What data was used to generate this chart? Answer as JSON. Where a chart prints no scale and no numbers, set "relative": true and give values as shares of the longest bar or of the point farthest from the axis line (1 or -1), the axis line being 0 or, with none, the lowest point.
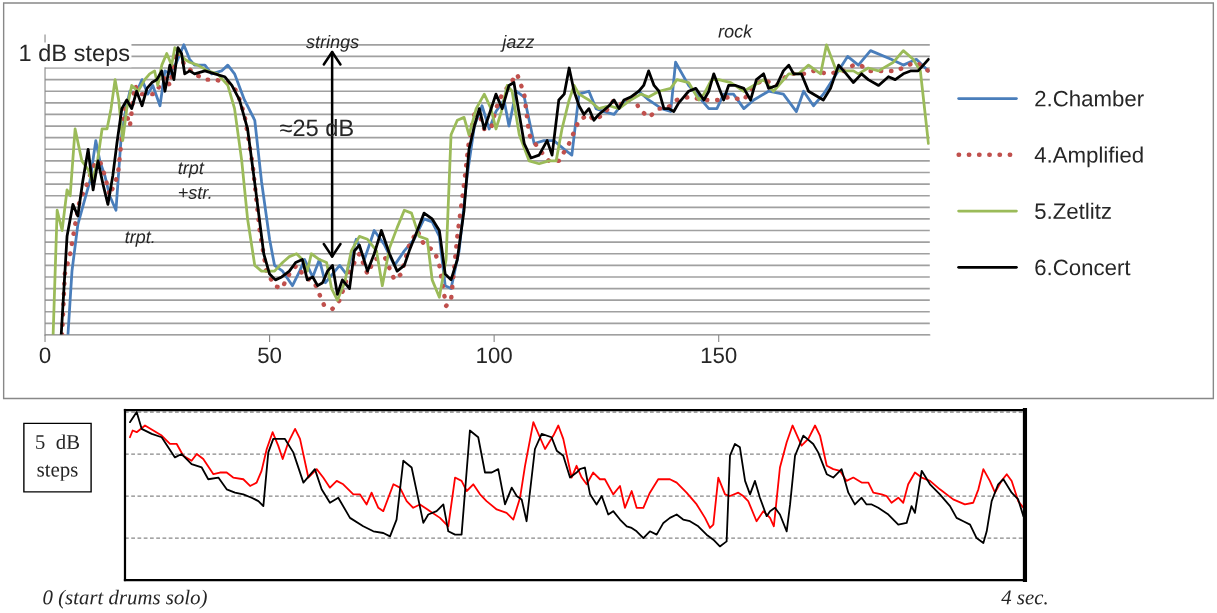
{
  "chart_data": [
    {
      "type": "line",
      "relative": true,
      "xlim": [
        0,
        197
      ],
      "xticks": [
        0,
        50,
        100,
        150
      ],
      "tick_labels": "x",
      "grid": "y",
      "legend": "right",
      "annotations": [
        "1 dB steps",
        "strings",
        "jazz",
        "rock",
        "trpt.",
        "trpt\n+str.",
        "≈25 dB"
      ],
      "series": [
        {
          "name": "2.Chamber",
          "color": "#4a7ebb",
          "line_style": "solid",
          "x": [
            5.1,
            6.0,
            7.3,
            8.9,
            10.0,
            11.3,
            12.2,
            13.3,
            14.4,
            15.8,
            16.9,
            18.0,
            18.9,
            20.2,
            21.6,
            22.9,
            24.0,
            25.6,
            26.7,
            27.8,
            29.3,
            30.9,
            32.2,
            33.3,
            35.6,
            37.1,
            39.3,
            40.7,
            42.2,
            44.4,
            46.7,
            48.2,
            50.0,
            51.1,
            52.9,
            55.1,
            56.7,
            57.8,
            59.6,
            61.1,
            62.4,
            64.0,
            65.6,
            67.1,
            69.3,
            71.1,
            73.3,
            75.6,
            77.8,
            80.0,
            82.2,
            84.4,
            86.2,
            87.8,
            89.1,
            90.4,
            92.2,
            94.0,
            95.6,
            97.3,
            98.9,
            100.4,
            102.2,
            103.3,
            104.9,
            106.7,
            108.9,
            111.1,
            113.3,
            115.6,
            117.3,
            118.9,
            121.1,
            122.7,
            124.4,
            126.7,
            128.2,
            130.0,
            132.2,
            134.4,
            137.3,
            139.3,
            140.4,
            143.3,
            145.6,
            147.8,
            149.6,
            151.1,
            153.3,
            155.6,
            157.8,
            161.1,
            164.4,
            167.3,
            168.9,
            171.1,
            173.3,
            178.7,
            181.1,
            183.8,
            188.4,
            191.1,
            194.0,
            196.7
          ],
          "values": [
            0.0,
            0.22,
            0.38,
            0.47,
            0.53,
            0.67,
            0.6,
            0.55,
            0.48,
            0.43,
            0.67,
            0.78,
            0.84,
            0.83,
            0.88,
            0.83,
            0.86,
            0.79,
            0.91,
            0.9,
            0.94,
            1.0,
            0.95,
            0.93,
            0.93,
            0.9,
            0.91,
            0.93,
            0.9,
            0.81,
            0.74,
            0.53,
            0.33,
            0.24,
            0.22,
            0.17,
            0.22,
            0.26,
            0.2,
            0.26,
            0.18,
            0.21,
            0.24,
            0.21,
            0.33,
            0.26,
            0.36,
            0.31,
            0.24,
            0.29,
            0.33,
            0.4,
            0.39,
            0.34,
            0.17,
            0.16,
            0.29,
            0.55,
            0.72,
            0.79,
            0.71,
            0.77,
            0.81,
            0.72,
            0.84,
            0.82,
            0.66,
            0.67,
            0.67,
            0.64,
            0.62,
            0.83,
            0.84,
            0.78,
            0.77,
            0.76,
            0.79,
            0.81,
            0.84,
            0.81,
            0.78,
            0.77,
            0.94,
            0.86,
            0.82,
            0.78,
            0.78,
            0.83,
            0.83,
            0.78,
            0.81,
            0.84,
            0.83,
            0.77,
            0.84,
            0.79,
            0.83,
            0.96,
            0.93,
            0.98,
            0.95,
            0.93,
            0.95,
            0.91
          ]
        },
        {
          "name": "4.Amplified",
          "color": "#c0504d",
          "line_style": "dotted",
          "x": [
            3.8,
            4.4,
            5.6,
            6.7,
            7.8,
            8.9,
            10.0,
            11.1,
            12.2,
            13.3,
            14.4,
            16.2,
            17.8,
            18.9,
            20.0,
            21.1,
            22.9,
            24.4,
            25.6,
            26.7,
            27.8,
            29.3,
            31.1,
            33.3,
            35.6,
            37.8,
            40.7,
            42.7,
            44.4,
            46.2,
            47.8,
            49.3,
            51.1,
            52.7,
            54.4,
            56.0,
            57.8,
            60.0,
            62.2,
            64.0,
            65.6,
            67.8,
            70.0,
            71.8,
            73.3,
            75.6,
            77.8,
            79.3,
            81.1,
            82.9,
            84.4,
            86.7,
            87.8,
            89.3,
            90.4,
            91.8,
            93.3,
            94.4,
            95.6,
            96.7,
            97.8,
            99.3,
            100.4,
            101.8,
            103.3,
            105.1,
            106.7,
            107.8,
            110.0,
            112.2,
            114.4,
            116.7,
            118.9,
            121.1,
            122.2,
            124.4,
            126.7,
            128.9,
            131.1,
            132.2,
            134.4,
            136.7,
            138.4,
            140.7,
            143.3,
            146.7,
            150.0,
            152.2,
            155.6,
            157.8,
            160.0,
            162.9,
            165.6,
            168.9,
            171.1,
            174.4,
            177.8,
            180.0,
            181.6,
            183.3,
            186.7,
            189.6,
            192.2,
            194.0,
            196.7
          ],
          "values": [
            0.0,
            0.21,
            0.28,
            0.38,
            0.47,
            0.5,
            0.55,
            0.59,
            0.6,
            0.55,
            0.48,
            0.55,
            0.78,
            0.72,
            0.86,
            0.83,
            0.83,
            0.83,
            0.86,
            0.89,
            0.86,
            0.98,
            0.93,
            0.9,
            0.88,
            0.88,
            0.87,
            0.84,
            0.76,
            0.59,
            0.36,
            0.22,
            0.17,
            0.16,
            0.21,
            0.24,
            0.2,
            0.18,
            0.1,
            0.09,
            0.12,
            0.22,
            0.28,
            0.21,
            0.26,
            0.27,
            0.19,
            0.21,
            0.31,
            0.36,
            0.31,
            0.29,
            0.24,
            0.1,
            0.12,
            0.34,
            0.52,
            0.67,
            0.76,
            0.76,
            0.71,
            0.71,
            0.78,
            0.83,
            0.86,
            0.9,
            0.83,
            0.69,
            0.64,
            0.6,
            0.6,
            0.66,
            0.74,
            0.76,
            0.74,
            0.76,
            0.81,
            0.79,
            0.83,
            0.78,
            0.75,
            0.78,
            0.78,
            0.81,
            0.82,
            0.81,
            0.81,
            0.82,
            0.81,
            0.86,
            0.88,
            0.86,
            0.9,
            0.9,
            0.91,
            0.9,
            0.91,
            0.93,
            0.93,
            0.91,
            0.91,
            0.91,
            0.93,
            0.94,
            0.91
          ]
        },
        {
          "name": "5.Zetlitz",
          "color": "#9bbb59",
          "line_style": "solid",
          "x": [
            1.8,
            2.7,
            3.8,
            4.9,
            5.6,
            6.7,
            8.2,
            9.6,
            10.4,
            11.6,
            12.7,
            13.8,
            14.7,
            15.6,
            16.4,
            17.3,
            18.2,
            19.3,
            20.7,
            22.2,
            23.3,
            24.4,
            25.1,
            26.0,
            27.1,
            28.2,
            28.9,
            30.0,
            31.1,
            32.2,
            34.0,
            36.2,
            38.4,
            40.7,
            42.2,
            43.8,
            45.1,
            46.7,
            48.2,
            49.6,
            51.1,
            52.9,
            54.4,
            56.0,
            57.3,
            58.4,
            59.3,
            61.1,
            62.7,
            63.8,
            65.1,
            66.7,
            68.2,
            70.0,
            71.8,
            73.8,
            75.1,
            76.7,
            78.4,
            80.0,
            81.6,
            83.3,
            85.1,
            86.2,
            87.8,
            89.3,
            90.4,
            91.8,
            93.3,
            94.4,
            96.0,
            97.8,
            99.3,
            100.4,
            101.6,
            102.9,
            104.0,
            105.6,
            107.8,
            110.0,
            112.2,
            113.8,
            115.1,
            116.7,
            117.8,
            118.9,
            121.1,
            123.3,
            125.6,
            127.8,
            130.4,
            132.7,
            134.4,
            136.7,
            139.3,
            140.7,
            143.3,
            145.6,
            146.7,
            148.4,
            150.0,
            152.7,
            155.6,
            157.8,
            160.0,
            162.2,
            165.6,
            167.8,
            170.0,
            172.7,
            174.0,
            176.2,
            180.0,
            181.1,
            183.3,
            185.6,
            188.9,
            191.1,
            193.3,
            194.9,
            196.7
          ],
          "values": [
            0.0,
            0.43,
            0.36,
            0.5,
            0.48,
            0.71,
            0.6,
            0.57,
            0.53,
            0.59,
            0.71,
            0.71,
            0.78,
            0.88,
            0.81,
            0.67,
            0.78,
            0.86,
            0.84,
            0.88,
            0.9,
            0.91,
            0.86,
            0.93,
            0.97,
            0.93,
            0.99,
            0.97,
            0.95,
            0.94,
            0.93,
            0.91,
            0.9,
            0.86,
            0.78,
            0.6,
            0.4,
            0.24,
            0.22,
            0.22,
            0.22,
            0.25,
            0.27,
            0.28,
            0.26,
            0.22,
            0.28,
            0.26,
            0.25,
            0.16,
            0.12,
            0.18,
            0.29,
            0.34,
            0.33,
            0.29,
            0.17,
            0.3,
            0.37,
            0.43,
            0.42,
            0.34,
            0.33,
            0.19,
            0.13,
            0.26,
            0.69,
            0.74,
            0.75,
            0.69,
            0.78,
            0.83,
            0.78,
            0.71,
            0.77,
            0.86,
            0.84,
            0.69,
            0.6,
            0.59,
            0.6,
            0.6,
            0.71,
            0.81,
            0.86,
            0.83,
            0.81,
            0.78,
            0.79,
            0.78,
            0.81,
            0.83,
            0.82,
            0.84,
            0.85,
            0.88,
            0.87,
            0.81,
            0.83,
            0.88,
            0.88,
            0.87,
            0.84,
            0.86,
            0.88,
            0.84,
            0.9,
            0.9,
            0.93,
            0.9,
            1.0,
            0.91,
            0.91,
            0.9,
            0.92,
            0.91,
            0.94,
            0.98,
            0.95,
            0.91,
            0.66
          ]
        },
        {
          "name": "6.Concert",
          "color": "#000000",
          "line_style": "solid",
          "x": [
            3.6,
            4.9,
            6.2,
            7.3,
            8.4,
            9.6,
            10.7,
            11.8,
            12.9,
            14.0,
            15.1,
            16.0,
            17.1,
            18.2,
            19.3,
            20.4,
            21.6,
            22.7,
            23.8,
            24.9,
            26.0,
            26.7,
            27.8,
            28.7,
            29.6,
            30.4,
            31.1,
            32.2,
            33.3,
            35.6,
            37.8,
            40.0,
            41.6,
            43.3,
            45.1,
            46.9,
            48.7,
            50.0,
            51.3,
            52.7,
            54.4,
            55.8,
            57.3,
            58.4,
            59.6,
            60.7,
            61.8,
            62.9,
            64.0,
            65.1,
            66.2,
            67.8,
            68.9,
            70.0,
            71.8,
            73.3,
            74.9,
            76.7,
            78.4,
            80.0,
            81.1,
            82.9,
            84.4,
            86.2,
            87.8,
            89.1,
            90.4,
            91.8,
            93.3,
            94.4,
            95.6,
            96.7,
            97.8,
            98.9,
            100.4,
            101.8,
            103.3,
            104.4,
            105.6,
            106.7,
            108.2,
            110.0,
            111.8,
            112.9,
            114.4,
            115.6,
            116.7,
            117.8,
            118.9,
            120.0,
            121.1,
            122.2,
            123.3,
            125.6,
            126.7,
            127.8,
            128.9,
            130.4,
            132.2,
            133.3,
            134.4,
            135.6,
            136.7,
            137.8,
            138.9,
            140.0,
            141.1,
            142.2,
            143.3,
            144.9,
            146.7,
            147.8,
            148.9,
            151.1,
            152.2,
            153.8,
            155.6,
            157.1,
            158.4,
            160.0,
            161.1,
            162.9,
            164.4,
            165.6,
            166.7,
            168.4,
            170.0,
            173.3,
            174.9,
            176.7,
            178.4,
            180.0,
            181.8,
            183.3,
            185.6,
            187.8,
            189.3,
            191.1,
            192.7,
            194.4,
            196.7
          ],
          "values": [
            0.0,
            0.34,
            0.45,
            0.41,
            0.53,
            0.64,
            0.5,
            0.6,
            0.52,
            0.45,
            0.55,
            0.66,
            0.78,
            0.81,
            0.78,
            0.84,
            0.79,
            0.85,
            0.87,
            0.88,
            0.91,
            0.84,
            0.93,
            0.88,
            0.99,
            0.97,
            0.9,
            0.91,
            0.9,
            0.91,
            0.9,
            0.89,
            0.86,
            0.81,
            0.71,
            0.5,
            0.28,
            0.21,
            0.19,
            0.2,
            0.22,
            0.25,
            0.26,
            0.19,
            0.2,
            0.17,
            0.18,
            0.22,
            0.24,
            0.14,
            0.19,
            0.16,
            0.29,
            0.31,
            0.22,
            0.28,
            0.36,
            0.28,
            0.22,
            0.24,
            0.29,
            0.36,
            0.42,
            0.4,
            0.36,
            0.21,
            0.19,
            0.26,
            0.43,
            0.64,
            0.72,
            0.78,
            0.71,
            0.76,
            0.83,
            0.78,
            0.86,
            0.87,
            0.76,
            0.66,
            0.61,
            0.62,
            0.67,
            0.62,
            0.81,
            0.83,
            0.92,
            0.84,
            0.79,
            0.76,
            0.78,
            0.74,
            0.76,
            0.79,
            0.81,
            0.78,
            0.81,
            0.82,
            0.84,
            0.86,
            0.91,
            0.86,
            0.84,
            0.78,
            0.78,
            0.77,
            0.8,
            0.82,
            0.84,
            0.85,
            0.81,
            0.84,
            0.9,
            0.81,
            0.86,
            0.86,
            0.85,
            0.81,
            0.88,
            0.9,
            0.85,
            0.86,
            0.91,
            0.93,
            0.9,
            0.9,
            0.84,
            0.81,
            0.85,
            0.93,
            0.9,
            0.87,
            0.9,
            0.88,
            0.86,
            0.89,
            0.88,
            0.9,
            0.91,
            0.91,
            0.95
          ]
        }
      ]
    },
    {
      "type": "line",
      "relative": true,
      "xlim": [
        0,
        4
      ],
      "xticks": [
        {
          "value": 0,
          "label": "0 (start drums solo)"
        },
        {
          "value": 4,
          "label": "4 sec."
        }
      ],
      "tick_labels": "x",
      "grid": "y",
      "annotations": [
        "5  dB\nsteps"
      ],
      "series": [
        {
          "color": "#ff0000",
          "x": [
            0.022,
            0.034,
            0.052,
            0.089,
            0.126,
            0.163,
            0.2,
            0.23,
            0.259,
            0.296,
            0.319,
            0.348,
            0.393,
            0.422,
            0.452,
            0.481,
            0.526,
            0.556,
            0.585,
            0.607,
            0.63,
            0.656,
            0.681,
            0.701,
            0.726,
            0.756,
            0.778,
            0.815,
            0.852,
            0.881,
            0.911,
            0.941,
            0.97,
            1.015,
            1.044,
            1.074,
            1.096,
            1.126,
            1.148,
            1.193,
            1.222,
            1.252,
            1.281,
            1.311,
            1.356,
            1.4,
            1.437,
            1.467,
            1.496,
            1.519,
            1.548,
            1.578,
            1.607,
            1.652,
            1.696,
            1.726,
            1.756,
            1.778,
            1.815,
            1.844,
            1.867,
            1.904,
            1.926,
            1.948,
            1.985,
            2.007,
            2.03,
            2.052,
            2.081,
            2.111,
            2.133,
            2.17,
            2.2,
            2.222,
            2.252,
            2.274,
            2.304,
            2.333,
            2.37,
            2.422,
            2.452,
            2.496,
            2.541,
            2.578,
            2.6,
            2.615,
            2.637,
            2.667,
            2.689,
            2.726,
            2.748,
            2.77,
            2.807,
            2.837,
            2.867,
            2.884,
            2.911,
            2.941,
            2.967,
            3.007,
            3.037,
            3.067,
            3.089,
            3.119,
            3.148,
            3.178,
            3.207,
            3.237,
            3.274,
            3.304,
            3.326,
            3.363,
            3.385,
            3.407,
            3.437,
            3.459,
            3.481,
            3.511,
            3.541,
            3.578,
            3.622,
            3.681,
            3.733,
            3.77,
            3.793,
            3.815,
            3.844,
            3.867,
            3.896,
            3.919,
            3.941,
            3.97,
            3.993
          ],
          "values": [
            0.85,
            0.89,
            0.88,
            0.92,
            0.89,
            0.86,
            0.81,
            0.81,
            0.74,
            0.71,
            0.75,
            0.72,
            0.63,
            0.64,
            0.64,
            0.61,
            0.6,
            0.56,
            0.58,
            0.65,
            0.78,
            0.88,
            0.8,
            0.72,
            0.82,
            0.9,
            0.84,
            0.61,
            0.66,
            0.61,
            0.55,
            0.59,
            0.57,
            0.51,
            0.51,
            0.45,
            0.52,
            0.43,
            0.41,
            0.57,
            0.55,
            0.47,
            0.43,
            0.45,
            0.41,
            0.37,
            0.32,
            0.61,
            0.59,
            0.53,
            0.57,
            0.51,
            0.47,
            0.42,
            0.4,
            0.36,
            0.49,
            0.68,
            0.94,
            0.85,
            0.78,
            0.86,
            0.92,
            0.84,
            0.61,
            0.68,
            0.61,
            0.57,
            0.64,
            0.6,
            0.6,
            0.51,
            0.56,
            0.43,
            0.53,
            0.43,
            0.43,
            0.52,
            0.6,
            0.6,
            0.58,
            0.52,
            0.45,
            0.37,
            0.31,
            0.33,
            0.61,
            0.51,
            0.5,
            0.52,
            0.5,
            0.47,
            0.35,
            0.41,
            0.37,
            0.32,
            0.67,
            0.82,
            0.92,
            0.8,
            0.84,
            0.92,
            0.86,
            0.68,
            0.66,
            0.65,
            0.59,
            0.61,
            0.58,
            0.58,
            0.52,
            0.51,
            0.5,
            0.46,
            0.49,
            0.46,
            0.57,
            0.64,
            0.61,
            0.59,
            0.54,
            0.48,
            0.45,
            0.46,
            0.54,
            0.66,
            0.59,
            0.52,
            0.59,
            0.63,
            0.59,
            0.47,
            0.43
          ]
        },
        {
          "color": "#000000",
          "x": [
            0.022,
            0.052,
            0.074,
            0.119,
            0.163,
            0.222,
            0.252,
            0.296,
            0.341,
            0.37,
            0.415,
            0.452,
            0.489,
            0.526,
            0.563,
            0.593,
            0.615,
            0.637,
            0.659,
            0.711,
            0.748,
            0.793,
            0.844,
            0.874,
            0.911,
            0.948,
            1.0,
            1.059,
            1.104,
            1.148,
            1.178,
            1.207,
            1.237,
            1.274,
            1.304,
            1.326,
            1.348,
            1.385,
            1.415,
            1.437,
            1.467,
            1.496,
            1.533,
            1.57,
            1.6,
            1.63,
            1.659,
            1.689,
            1.719,
            1.741,
            1.763,
            1.785,
            1.822,
            1.852,
            1.896,
            1.919,
            1.948,
            1.978,
            2.007,
            2.022,
            2.044,
            2.067,
            2.096,
            2.119,
            2.148,
            2.17,
            2.2,
            2.23,
            2.252,
            2.274,
            2.304,
            2.333,
            2.363,
            2.393,
            2.422,
            2.452,
            2.481,
            2.511,
            2.548,
            2.585,
            2.615,
            2.644,
            2.674,
            2.689,
            2.711,
            2.733,
            2.756,
            2.778,
            2.8,
            2.822,
            2.852,
            2.867,
            2.889,
            2.911,
            2.941,
            2.956,
            2.978,
            3.015,
            3.059,
            3.081,
            3.119,
            3.148,
            3.185,
            3.215,
            3.244,
            3.274,
            3.296,
            3.319,
            3.348,
            3.393,
            3.437,
            3.474,
            3.496,
            3.511,
            3.541,
            3.578,
            3.622,
            3.667,
            3.696,
            3.726,
            3.756,
            3.785,
            3.815,
            3.83,
            3.852,
            3.881,
            3.904,
            3.941,
            3.97,
            3.993
          ],
          "values": [
            0.94,
            1.0,
            0.9,
            0.87,
            0.85,
            0.73,
            0.75,
            0.69,
            0.67,
            0.6,
            0.61,
            0.54,
            0.52,
            0.51,
            0.49,
            0.47,
            0.44,
            0.76,
            0.84,
            0.84,
            0.76,
            0.58,
            0.66,
            0.54,
            0.46,
            0.49,
            0.37,
            0.32,
            0.29,
            0.28,
            0.26,
            0.36,
            0.71,
            0.67,
            0.48,
            0.34,
            0.39,
            0.41,
            0.45,
            0.29,
            0.27,
            0.27,
            0.89,
            0.85,
            0.64,
            0.64,
            0.66,
            0.45,
            0.55,
            0.5,
            0.48,
            0.35,
            0.78,
            0.87,
            0.85,
            0.77,
            0.74,
            0.61,
            0.64,
            0.66,
            0.67,
            0.51,
            0.45,
            0.5,
            0.39,
            0.41,
            0.36,
            0.32,
            0.31,
            0.29,
            0.25,
            0.29,
            0.27,
            0.34,
            0.37,
            0.39,
            0.36,
            0.35,
            0.32,
            0.27,
            0.24,
            0.2,
            0.23,
            0.74,
            0.81,
            0.79,
            0.59,
            0.51,
            0.59,
            0.49,
            0.38,
            0.41,
            0.43,
            0.39,
            0.29,
            0.45,
            0.74,
            0.86,
            0.81,
            0.76,
            0.63,
            0.61,
            0.66,
            0.52,
            0.45,
            0.49,
            0.45,
            0.45,
            0.43,
            0.39,
            0.33,
            0.34,
            0.44,
            0.4,
            0.65,
            0.57,
            0.51,
            0.44,
            0.37,
            0.35,
            0.33,
            0.25,
            0.22,
            0.29,
            0.47,
            0.57,
            0.6,
            0.52,
            0.48,
            0.38
          ]
        }
      ]
    }
  ]
}
